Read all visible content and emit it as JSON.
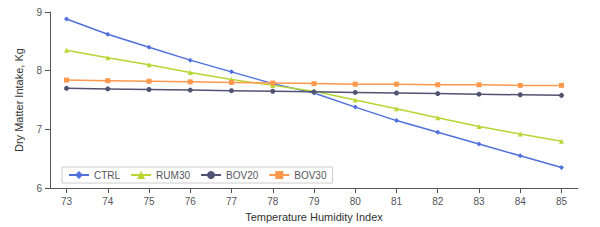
{
  "chart_data": {
    "type": "line",
    "x": [
      73,
      74,
      75,
      76,
      77,
      78,
      79,
      80,
      81,
      82,
      83,
      84,
      85
    ],
    "series": [
      {
        "name": "CTRL",
        "marker": "diamond",
        "values": [
          8.88,
          8.62,
          8.4,
          8.18,
          7.98,
          7.78,
          7.62,
          7.38,
          7.15,
          6.95,
          6.75,
          6.55,
          6.35
        ]
      },
      {
        "name": "RUM30",
        "marker": "triangle",
        "values": [
          8.35,
          8.22,
          8.1,
          7.97,
          7.85,
          7.75,
          7.65,
          7.5,
          7.35,
          7.2,
          7.05,
          6.92,
          6.8
        ]
      },
      {
        "name": "BOV20",
        "marker": "circle",
        "values": [
          7.7,
          7.69,
          7.68,
          7.67,
          7.66,
          7.65,
          7.64,
          7.63,
          7.62,
          7.61,
          7.6,
          7.59,
          7.58
        ]
      },
      {
        "name": "BOV30",
        "marker": "square",
        "values": [
          7.84,
          7.83,
          7.82,
          7.81,
          7.8,
          7.79,
          7.78,
          7.77,
          7.77,
          7.76,
          7.76,
          7.75,
          7.75
        ]
      }
    ],
    "xlabel": "Temperature Humidity Index",
    "ylabel": "Dry Matter Intake, Kg",
    "xlim": [
      72.6,
      85.4
    ],
    "xticks": [
      73,
      74,
      75,
      76,
      77,
      78,
      79,
      80,
      81,
      82,
      83,
      84,
      85
    ],
    "ylim": [
      6.0,
      9.0
    ],
    "yticks": [
      6,
      7,
      8,
      9
    ],
    "grid": false,
    "legend": "lower left"
  }
}
